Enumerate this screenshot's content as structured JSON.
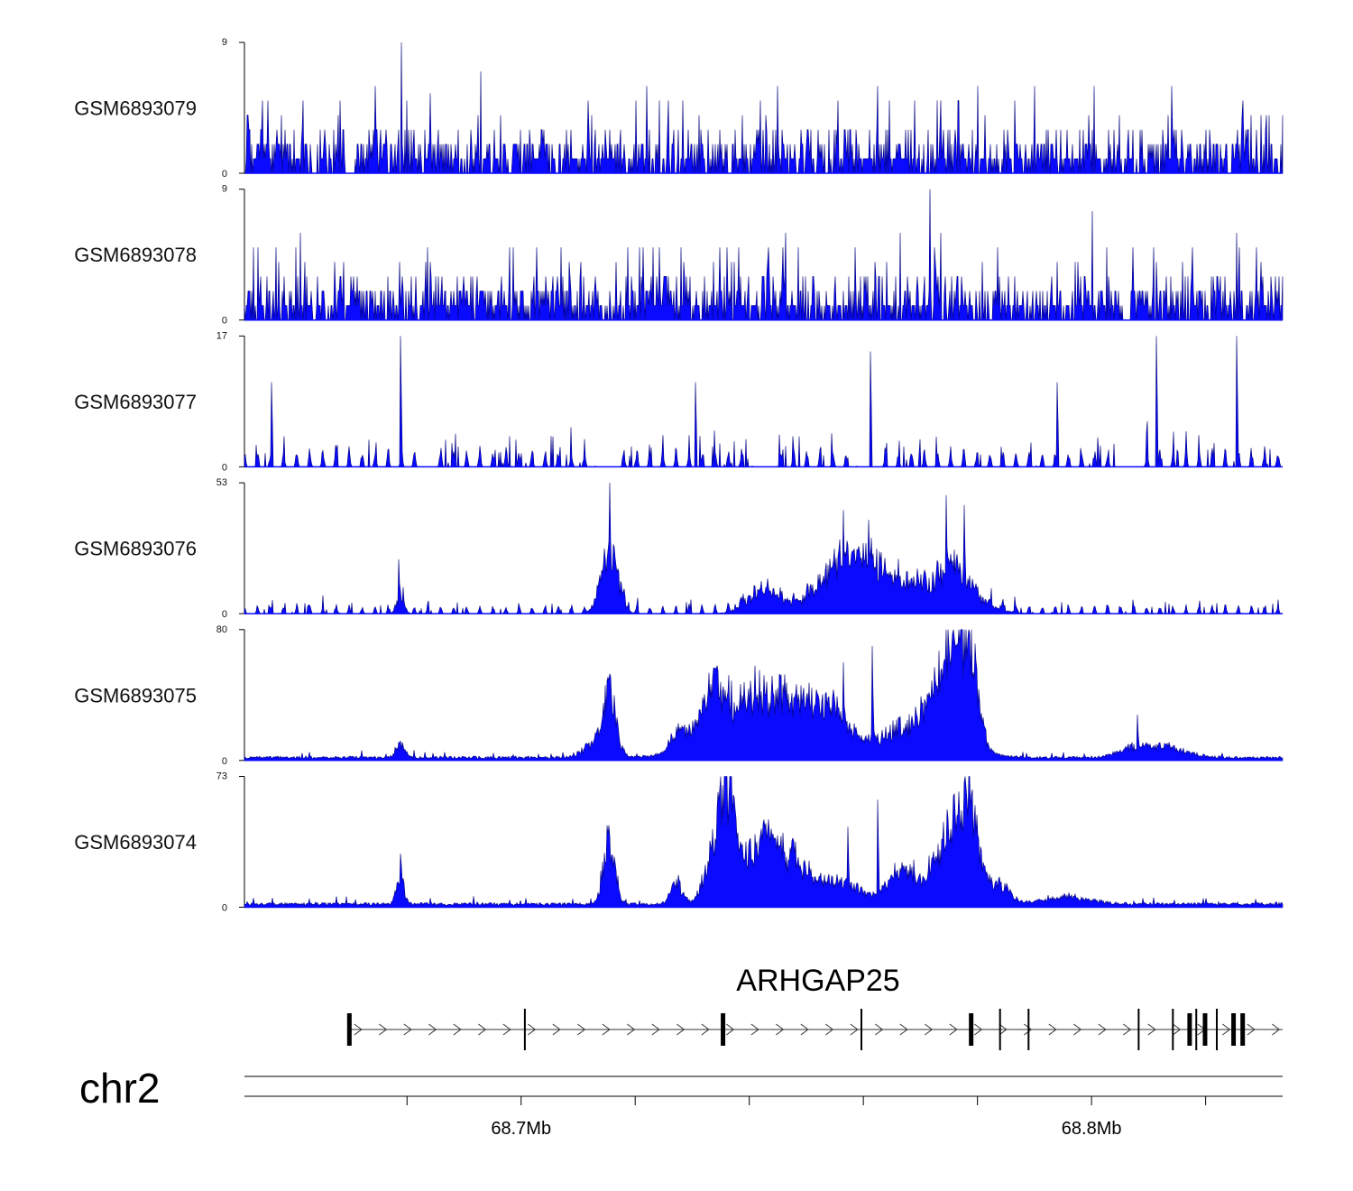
{
  "chart_data": {
    "type": "area",
    "title": "",
    "chromosome": "chr2",
    "x_range_mb": [
      68.6515,
      68.8335
    ],
    "x_ticks_mb": [
      68.68,
      68.7,
      68.72,
      68.74,
      68.76,
      68.78,
      68.8,
      68.82
    ],
    "x_tick_labels": [
      {
        "pos": 68.7,
        "label": "68.7Mb"
      },
      {
        "pos": 68.8,
        "label": "68.8Mb"
      }
    ],
    "series": [
      {
        "name": "GSM6893079",
        "ymax": 9,
        "ymin": 0,
        "style": "noise",
        "seed": 79,
        "spikes": [
          [
            68.679,
            9
          ],
          [
            68.6745,
            6
          ],
          [
            68.693,
            7
          ],
          [
            68.684,
            5.5
          ],
          [
            68.745,
            6
          ],
          [
            68.78,
            6
          ],
          [
            68.79,
            6
          ],
          [
            68.814,
            6
          ],
          [
            68.8005,
            6
          ],
          [
            68.722,
            6
          ],
          [
            68.7625,
            6
          ]
        ],
        "gaps": [
          [
            68.6692,
            68.6708
          ]
        ],
        "peaks": []
      },
      {
        "name": "GSM6893078",
        "ymax": 9,
        "ymin": 0,
        "style": "noise",
        "seed": 78,
        "spikes": [
          [
            68.7716,
            9
          ],
          [
            68.8001,
            7.5
          ],
          [
            68.6613,
            6
          ],
          [
            68.7463,
            6
          ],
          [
            68.7736,
            6
          ],
          [
            68.7665,
            6
          ],
          [
            68.8255,
            6
          ],
          [
            68.698,
            5
          ],
          [
            68.7585,
            5
          ]
        ],
        "gaps": [
          [
            68.8055,
            68.8069
          ]
        ],
        "peaks": []
      },
      {
        "name": "GSM6893077",
        "ymax": 17,
        "ymin": 0,
        "style": "triangles",
        "seed": 77,
        "spikes": [
          [
            68.6788,
            17
          ],
          [
            68.7612,
            15
          ],
          [
            68.8114,
            17
          ],
          [
            68.8255,
            17
          ],
          [
            68.6563,
            11
          ],
          [
            68.7306,
            11
          ],
          [
            68.794,
            11
          ]
        ],
        "gaps": [
          [
            68.6821,
            68.6854
          ],
          [
            68.7131,
            68.7163
          ],
          [
            68.7406,
            68.7438
          ],
          [
            68.7589,
            68.7621
          ],
          [
            68.8046,
            68.8081
          ]
        ],
        "peaks": []
      },
      {
        "name": "GSM6893076",
        "ymax": 53,
        "ymin": 0,
        "style": "triangles",
        "seed": 76,
        "spikes": [
          [
            68.7155,
            53
          ],
          [
            68.7745,
            48
          ],
          [
            68.7565,
            42
          ],
          [
            68.7609,
            38
          ],
          [
            68.7777,
            44
          ],
          [
            68.6785,
            22
          ]
        ],
        "gaps": [],
        "peaks": [
          [
            68.7155,
            0.0015,
            22
          ],
          [
            68.7415,
            0.0025,
            6
          ],
          [
            68.7445,
            0.0025,
            4
          ],
          [
            68.7563,
            0.0045,
            16
          ],
          [
            68.7616,
            0.004,
            12
          ],
          [
            68.7715,
            0.005,
            10
          ],
          [
            68.7763,
            0.0025,
            12
          ],
          [
            68.7815,
            0.003,
            2
          ],
          [
            68.6788,
            0.0007,
            6
          ]
        ]
      },
      {
        "name": "GSM6893075",
        "ymax": 80,
        "ymin": 0,
        "style": "area",
        "seed": 75,
        "spikes": [
          [
            68.7745,
            80
          ],
          [
            68.7787,
            78
          ],
          [
            68.7616,
            70
          ],
          [
            68.7155,
            53
          ],
          [
            68.7565,
            60
          ],
          [
            68.808,
            28
          ]
        ],
        "gaps": [],
        "peaks": [
          [
            68.7155,
            0.0012,
            32
          ],
          [
            68.7132,
            0.0022,
            8
          ],
          [
            68.7275,
            0.0015,
            10
          ],
          [
            68.7331,
            0.0015,
            22
          ],
          [
            68.7385,
            0.006,
            30
          ],
          [
            68.7484,
            0.006,
            26
          ],
          [
            68.7545,
            0.003,
            14
          ],
          [
            68.7698,
            0.006,
            22
          ],
          [
            68.775,
            0.0025,
            40
          ],
          [
            68.7785,
            0.0015,
            55
          ],
          [
            68.6788,
            0.0008,
            8
          ],
          [
            68.808,
            0.003,
            6
          ],
          [
            68.814,
            0.003,
            5
          ]
        ]
      },
      {
        "name": "GSM6893074",
        "ymax": 73,
        "ymin": 0,
        "style": "area",
        "seed": 74,
        "spikes": [
          [
            68.7785,
            73
          ],
          [
            68.7625,
            60
          ],
          [
            68.7155,
            40
          ],
          [
            68.7573,
            45
          ]
        ],
        "gaps": [],
        "peaks": [
          [
            68.6788,
            0.0006,
            20
          ],
          [
            68.7155,
            0.001,
            34
          ],
          [
            68.7273,
            0.001,
            12
          ],
          [
            68.7335,
            0.0015,
            22
          ],
          [
            68.7361,
            0.0012,
            58
          ],
          [
            68.7418,
            0.004,
            25
          ],
          [
            68.7474,
            0.005,
            18
          ],
          [
            68.757,
            0.003,
            8
          ],
          [
            68.7664,
            0.002,
            8
          ],
          [
            68.7703,
            0.005,
            14
          ],
          [
            68.7751,
            0.002,
            30
          ],
          [
            68.7785,
            0.0015,
            60
          ],
          [
            68.7833,
            0.002,
            12
          ],
          [
            68.7955,
            0.004,
            4
          ]
        ]
      }
    ],
    "gene": {
      "name": "ARHGAP25",
      "strand": "+",
      "start_mb": 68.6695,
      "end_mb": 68.8338,
      "exons_mb": [
        [
          68.6695,
          68.6698,
          1
        ],
        [
          68.7005,
          68.7006,
          0
        ],
        [
          68.735,
          68.7354,
          1
        ],
        [
          68.7595,
          68.7597,
          0
        ],
        [
          68.7785,
          68.7792,
          1
        ],
        [
          68.7838,
          68.7839,
          0
        ],
        [
          68.7888,
          68.7889,
          0
        ],
        [
          68.8081,
          68.8083,
          0
        ],
        [
          68.8141,
          68.8143,
          0
        ],
        [
          68.8168,
          68.8172,
          1
        ],
        [
          68.8182,
          68.8185,
          0
        ],
        [
          68.8195,
          68.8198,
          1
        ],
        [
          68.8218,
          68.8221,
          0
        ],
        [
          68.8245,
          68.8248,
          1
        ],
        [
          68.8261,
          68.8266,
          1
        ]
      ]
    }
  }
}
